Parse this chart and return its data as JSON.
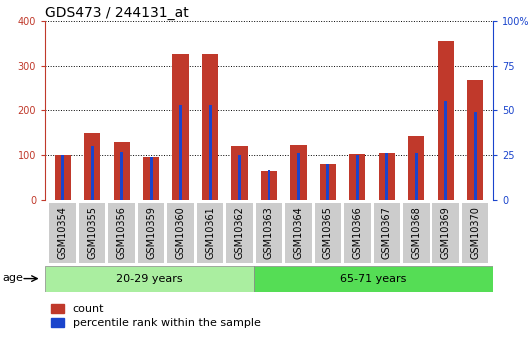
{
  "title": "GDS473 / 244131_at",
  "samples": [
    "GSM10354",
    "GSM10355",
    "GSM10356",
    "GSM10359",
    "GSM10360",
    "GSM10361",
    "GSM10362",
    "GSM10363",
    "GSM10364",
    "GSM10365",
    "GSM10366",
    "GSM10367",
    "GSM10368",
    "GSM10369",
    "GSM10370"
  ],
  "counts": [
    100,
    150,
    130,
    97,
    325,
    325,
    120,
    65,
    123,
    80,
    103,
    105,
    143,
    355,
    268
  ],
  "percentiles": [
    25,
    30,
    27,
    24,
    53,
    53,
    25,
    17,
    26,
    20,
    25,
    26,
    26,
    55,
    49
  ],
  "group1_label": "20-29 years",
  "group1_samples": 7,
  "group2_label": "65-71 years",
  "group2_samples": 8,
  "age_label": "age",
  "ylim_left": [
    0,
    400
  ],
  "ylim_right": [
    0,
    100
  ],
  "yticks_left": [
    0,
    100,
    200,
    300,
    400
  ],
  "yticks_right": [
    0,
    25,
    50,
    75,
    100
  ],
  "bar_color_count": "#c0392b",
  "bar_color_pct": "#1a44cc",
  "bg_plot": "#ffffff",
  "bg_group1": "#aaeea0",
  "bg_group2": "#55dd55",
  "bg_tick": "#cccccc",
  "title_fontsize": 10,
  "tick_fontsize": 7,
  "label_fontsize": 8,
  "legend_fontsize": 8
}
